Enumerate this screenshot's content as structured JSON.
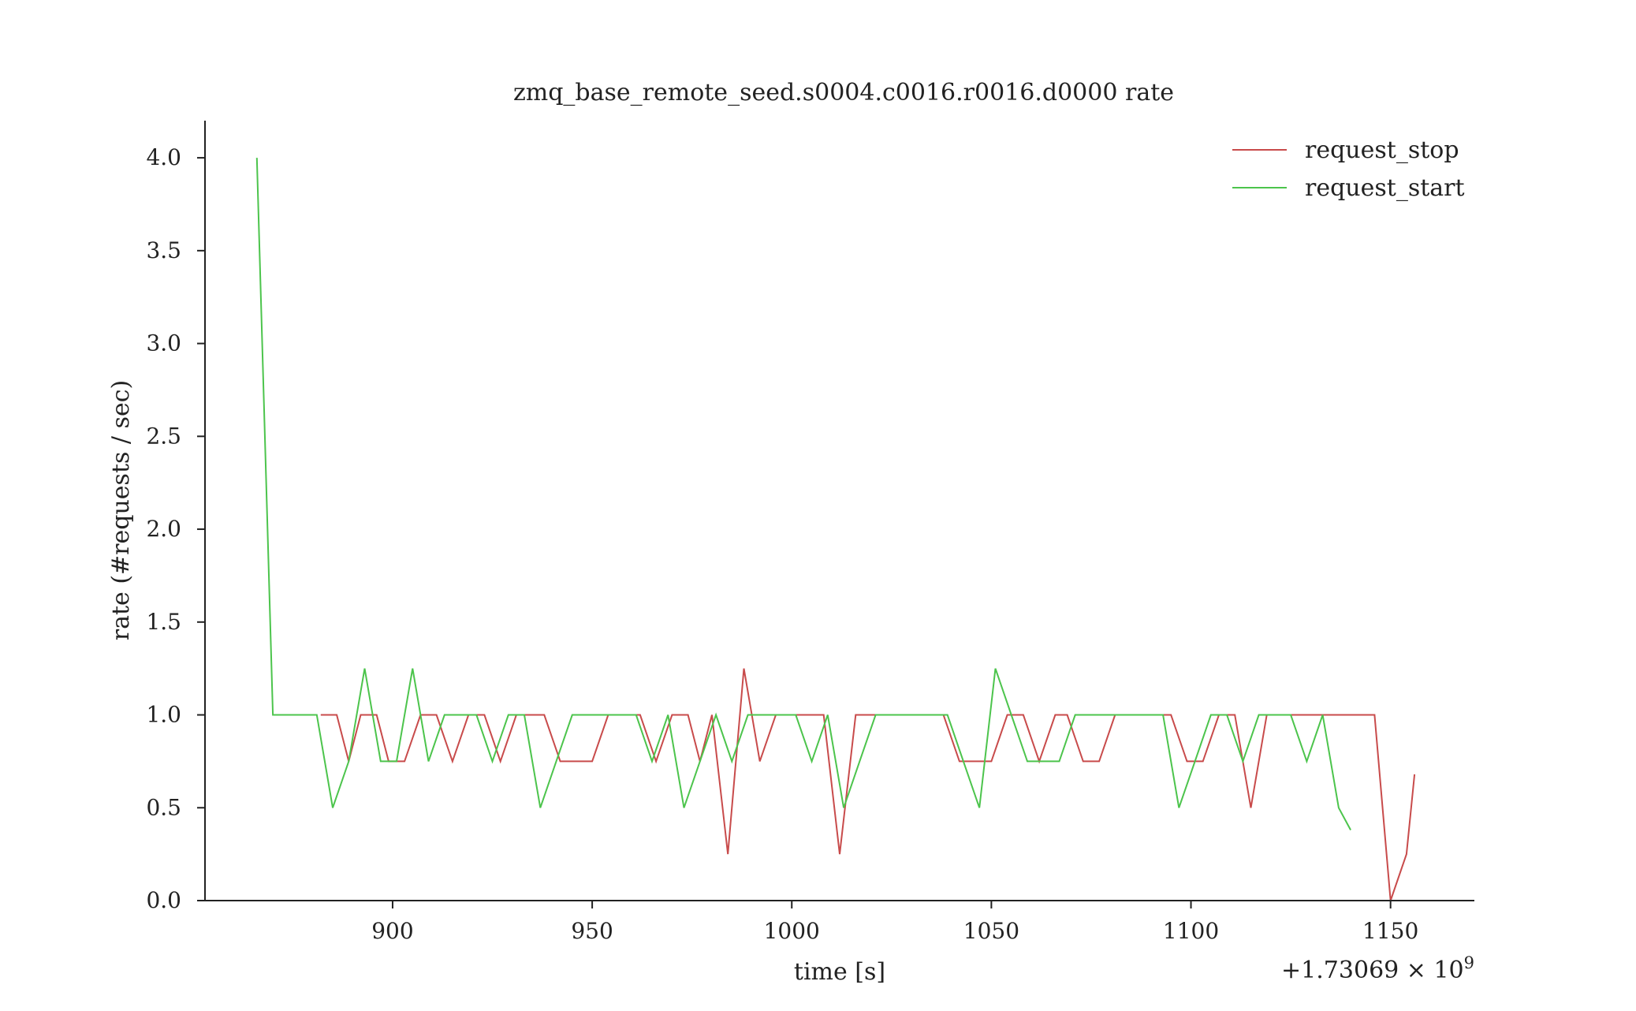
{
  "chart_data": {
    "type": "line",
    "title": "zmq_base_remote_seed.s0004.c0016.r0016.d0000 rate",
    "xlabel": "time [s]",
    "ylabel": "rate (#requests / sec)",
    "x_offset_label": "+1.73069 × 10",
    "x_offset_exponent": "9",
    "xlim": [
      853,
      1171
    ],
    "ylim": [
      0,
      4.2
    ],
    "xticks": [
      900,
      950,
      1000,
      1050,
      1100,
      1150
    ],
    "xtick_labels": [
      "900",
      "950",
      "1000",
      "1050",
      "1100",
      "1150"
    ],
    "yticks": [
      0,
      0.5,
      1,
      1.5,
      2,
      2.5,
      3,
      3.5,
      4
    ],
    "ytick_labels": [
      "0.0",
      "0.5",
      "1.0",
      "1.5",
      "2.0",
      "2.5",
      "3.0",
      "3.5",
      "4.0"
    ],
    "grid": false,
    "legend_position": "top-right",
    "series": [
      {
        "name": "request_stop",
        "color": "#c84b4b",
        "points": [
          [
            882,
            1.0
          ],
          [
            886,
            1.0
          ],
          [
            889,
            0.75
          ],
          [
            892,
            1.0
          ],
          [
            896,
            1.0
          ],
          [
            899,
            0.75
          ],
          [
            903,
            0.75
          ],
          [
            907,
            1.0
          ],
          [
            911,
            1.0
          ],
          [
            915,
            0.75
          ],
          [
            919,
            1.0
          ],
          [
            923,
            1.0
          ],
          [
            927,
            0.75
          ],
          [
            931,
            1.0
          ],
          [
            938,
            1.0
          ],
          [
            942,
            0.75
          ],
          [
            950,
            0.75
          ],
          [
            954,
            1.0
          ],
          [
            962,
            1.0
          ],
          [
            966,
            0.75
          ],
          [
            970,
            1.0
          ],
          [
            974,
            1.0
          ],
          [
            977,
            0.75
          ],
          [
            980,
            1.0
          ],
          [
            984,
            0.25
          ],
          [
            988,
            1.25
          ],
          [
            992,
            0.75
          ],
          [
            996,
            1.0
          ],
          [
            1008,
            1.0
          ],
          [
            1012,
            0.25
          ],
          [
            1016,
            1.0
          ],
          [
            1038,
            1.0
          ],
          [
            1042,
            0.75
          ],
          [
            1050,
            0.75
          ],
          [
            1054,
            1.0
          ],
          [
            1058,
            1.0
          ],
          [
            1062,
            0.75
          ],
          [
            1066,
            1.0
          ],
          [
            1069,
            1.0
          ],
          [
            1073,
            0.75
          ],
          [
            1077,
            0.75
          ],
          [
            1081,
            1.0
          ],
          [
            1095,
            1.0
          ],
          [
            1099,
            0.75
          ],
          [
            1103,
            0.75
          ],
          [
            1107,
            1.0
          ],
          [
            1111,
            1.0
          ],
          [
            1115,
            0.5
          ],
          [
            1119,
            1.0
          ],
          [
            1146,
            1.0
          ],
          [
            1150,
            0.0
          ],
          [
            1154,
            0.25
          ],
          [
            1156,
            0.68
          ]
        ]
      },
      {
        "name": "request_start",
        "color": "#4cc44c",
        "points": [
          [
            866,
            4.0
          ],
          [
            870,
            1.0
          ],
          [
            881,
            1.0
          ],
          [
            885,
            0.5
          ],
          [
            889,
            0.75
          ],
          [
            893,
            1.25
          ],
          [
            897,
            0.75
          ],
          [
            901,
            0.75
          ],
          [
            905,
            1.25
          ],
          [
            909,
            0.75
          ],
          [
            913,
            1.0
          ],
          [
            921,
            1.0
          ],
          [
            925,
            0.75
          ],
          [
            929,
            1.0
          ],
          [
            933,
            1.0
          ],
          [
            937,
            0.5
          ],
          [
            941,
            0.75
          ],
          [
            945,
            1.0
          ],
          [
            961,
            1.0
          ],
          [
            965,
            0.75
          ],
          [
            969,
            1.0
          ],
          [
            973,
            0.5
          ],
          [
            977,
            0.75
          ],
          [
            981,
            1.0
          ],
          [
            985,
            0.75
          ],
          [
            989,
            1.0
          ],
          [
            1001,
            1.0
          ],
          [
            1005,
            0.75
          ],
          [
            1009,
            1.0
          ],
          [
            1013,
            0.5
          ],
          [
            1017,
            0.75
          ],
          [
            1021,
            1.0
          ],
          [
            1039,
            1.0
          ],
          [
            1043,
            0.75
          ],
          [
            1047,
            0.5
          ],
          [
            1051,
            1.25
          ],
          [
            1055,
            1.0
          ],
          [
            1059,
            0.75
          ],
          [
            1067,
            0.75
          ],
          [
            1071,
            1.0
          ],
          [
            1093,
            1.0
          ],
          [
            1097,
            0.5
          ],
          [
            1101,
            0.75
          ],
          [
            1105,
            1.0
          ],
          [
            1109,
            1.0
          ],
          [
            1113,
            0.75
          ],
          [
            1117,
            1.0
          ],
          [
            1125,
            1.0
          ],
          [
            1129,
            0.75
          ],
          [
            1133,
            1.0
          ],
          [
            1137,
            0.5
          ],
          [
            1140,
            0.38
          ]
        ]
      }
    ]
  }
}
